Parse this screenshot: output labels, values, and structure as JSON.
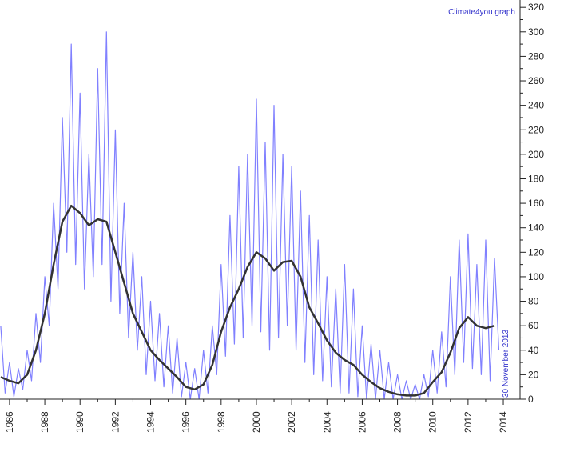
{
  "chart_data": {
    "type": "line",
    "annotations": [
      "Climate4you graph",
      "30 November 2013"
    ],
    "xlim": [
      1985.46,
      2014.95
    ],
    "ylim": [
      0,
      326
    ],
    "xticks": [
      1986,
      1988,
      1990,
      1992,
      1994,
      1996,
      1998,
      2000,
      2002,
      2004,
      2006,
      2008,
      2010,
      2012,
      2014
    ],
    "yticks": [
      0,
      20,
      40,
      60,
      80,
      100,
      120,
      140,
      160,
      180,
      200,
      220,
      240,
      260,
      280,
      300,
      320
    ],
    "series": [
      {
        "color": "#8080ff",
        "x": [
          1985.5,
          1985.75,
          1986,
          1986.25,
          1986.5,
          1986.75,
          1987,
          1987.25,
          1987.5,
          1987.75,
          1988,
          1988.25,
          1988.5,
          1988.75,
          1989,
          1989.25,
          1989.5,
          1989.75,
          1990,
          1990.25,
          1990.5,
          1990.75,
          1991,
          1991.25,
          1991.5,
          1991.75,
          1992,
          1992.25,
          1992.5,
          1992.75,
          1993,
          1993.25,
          1993.5,
          1993.75,
          1994,
          1994.25,
          1994.5,
          1994.75,
          1995,
          1995.25,
          1995.5,
          1995.75,
          1996,
          1996.25,
          1996.5,
          1996.75,
          1997,
          1997.25,
          1997.5,
          1997.75,
          1998,
          1998.25,
          1998.5,
          1998.75,
          1999,
          1999.25,
          1999.5,
          1999.75,
          2000,
          2000.25,
          2000.5,
          2000.75,
          2001,
          2001.25,
          2001.5,
          2001.75,
          2002,
          2002.25,
          2002.5,
          2002.75,
          2003,
          2003.25,
          2003.5,
          2003.75,
          2004,
          2004.25,
          2004.5,
          2004.75,
          2005,
          2005.25,
          2005.5,
          2005.75,
          2006,
          2006.25,
          2006.5,
          2006.75,
          2007,
          2007.25,
          2007.5,
          2007.75,
          2008,
          2008.25,
          2008.5,
          2008.75,
          2009,
          2009.25,
          2009.5,
          2009.75,
          2010,
          2010.25,
          2010.5,
          2010.75,
          2011,
          2011.25,
          2011.5,
          2011.75,
          2012,
          2012.25,
          2012.5,
          2012.75,
          2013,
          2013.25,
          2013.5,
          2013.75
        ],
        "values": [
          60,
          5,
          30,
          2,
          25,
          8,
          40,
          15,
          70,
          30,
          100,
          60,
          160,
          90,
          230,
          120,
          290,
          110,
          250,
          90,
          200,
          100,
          270,
          110,
          300,
          80,
          220,
          70,
          160,
          50,
          120,
          40,
          100,
          20,
          80,
          15,
          70,
          10,
          60,
          5,
          50,
          2,
          30,
          0,
          25,
          0,
          40,
          5,
          60,
          20,
          110,
          35,
          150,
          45,
          190,
          50,
          200,
          60,
          245,
          55,
          210,
          40,
          240,
          50,
          200,
          60,
          190,
          40,
          170,
          30,
          150,
          20,
          130,
          15,
          100,
          10,
          90,
          5,
          110,
          5,
          90,
          2,
          60,
          0,
          45,
          0,
          40,
          0,
          30,
          0,
          20,
          0,
          15,
          0,
          12,
          0,
          20,
          2,
          40,
          5,
          55,
          10,
          100,
          20,
          130,
          30,
          135,
          25,
          110,
          20,
          130,
          15,
          115,
          40
        ]
      },
      {
        "color": "#333333",
        "x": [
          1985.5,
          1986,
          1986.5,
          1987,
          1987.5,
          1988,
          1988.5,
          1989,
          1989.5,
          1990,
          1990.5,
          1991,
          1991.5,
          1992,
          1992.5,
          1993,
          1993.5,
          1994,
          1994.5,
          1995,
          1995.5,
          1996,
          1996.5,
          1997,
          1997.5,
          1998,
          1998.5,
          1999,
          1999.5,
          2000,
          2000.5,
          2001,
          2001.5,
          2002,
          2002.5,
          2003,
          2003.5,
          2004,
          2004.5,
          2005,
          2005.5,
          2006,
          2006.5,
          2007,
          2007.5,
          2008,
          2008.5,
          2009,
          2009.5,
          2010,
          2010.5,
          2011,
          2011.5,
          2012,
          2012.5,
          2013,
          2013.5
        ],
        "values": [
          18,
          15,
          13,
          20,
          40,
          70,
          110,
          145,
          158,
          152,
          142,
          147,
          145,
          120,
          95,
          70,
          55,
          40,
          32,
          25,
          18,
          10,
          8,
          12,
          28,
          55,
          75,
          90,
          108,
          120,
          115,
          105,
          112,
          113,
          100,
          75,
          62,
          48,
          38,
          32,
          28,
          20,
          14,
          9,
          6,
          4,
          3,
          3,
          5,
          14,
          22,
          38,
          58,
          67,
          60,
          58,
          60
        ]
      }
    ]
  }
}
